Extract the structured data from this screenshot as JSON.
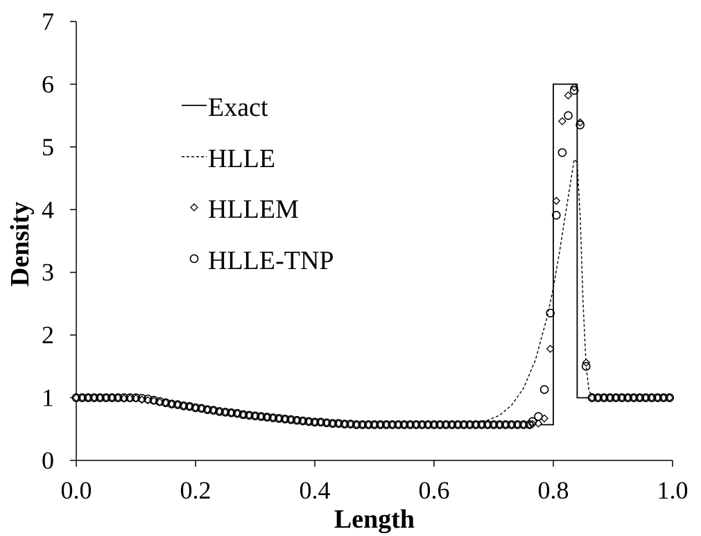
{
  "chart_data": {
    "type": "line",
    "title": "",
    "xlabel": "Length",
    "ylabel": "Density",
    "xlim": [
      0,
      1
    ],
    "ylim": [
      0,
      7
    ],
    "xticks": [
      0,
      0.2,
      0.4,
      0.6,
      0.8,
      1.0
    ],
    "xtick_labels": [
      "0.0",
      "0.2",
      "0.4",
      "0.6",
      "0.8",
      "1.0"
    ],
    "yticks": [
      0,
      1,
      2,
      3,
      4,
      5,
      6,
      7
    ],
    "ytick_labels": [
      "0",
      "1",
      "2",
      "3",
      "4",
      "5",
      "6",
      "7"
    ],
    "grid": false,
    "legend_position": "upper-left",
    "series": [
      {
        "name": "Exact",
        "style": "solid-line",
        "x": [
          0.0,
          0.1,
          0.12,
          0.14,
          0.16,
          0.18,
          0.2,
          0.22,
          0.24,
          0.26,
          0.28,
          0.3,
          0.32,
          0.34,
          0.36,
          0.38,
          0.4,
          0.42,
          0.44,
          0.46,
          0.48,
          0.5,
          0.8,
          0.8,
          0.84,
          0.84,
          1.0
        ],
        "y": [
          1.0,
          1.0,
          0.98,
          0.94,
          0.9,
          0.87,
          0.84,
          0.81,
          0.78,
          0.76,
          0.73,
          0.71,
          0.69,
          0.67,
          0.65,
          0.63,
          0.61,
          0.6,
          0.59,
          0.58,
          0.57,
          0.57,
          0.57,
          6.0,
          6.0,
          1.0,
          1.0
        ]
      },
      {
        "name": "HLLE",
        "style": "dashed-line",
        "x": [
          0.0,
          0.1,
          0.12,
          0.14,
          0.16,
          0.18,
          0.2,
          0.22,
          0.24,
          0.26,
          0.28,
          0.3,
          0.32,
          0.34,
          0.36,
          0.38,
          0.4,
          0.42,
          0.44,
          0.46,
          0.48,
          0.5,
          0.6,
          0.66,
          0.69,
          0.71,
          0.73,
          0.75,
          0.77,
          0.79,
          0.8,
          0.81,
          0.82,
          0.83,
          0.835,
          0.84,
          0.845,
          0.85,
          0.855,
          0.86,
          0.87,
          1.0
        ],
        "y": [
          1.0,
          1.0,
          0.98,
          0.94,
          0.9,
          0.87,
          0.84,
          0.81,
          0.78,
          0.76,
          0.73,
          0.71,
          0.69,
          0.67,
          0.65,
          0.63,
          0.61,
          0.6,
          0.59,
          0.58,
          0.57,
          0.57,
          0.58,
          0.6,
          0.64,
          0.72,
          0.88,
          1.15,
          1.6,
          2.3,
          2.75,
          3.3,
          3.9,
          4.5,
          4.8,
          4.75,
          3.9,
          2.5,
          1.5,
          1.1,
          1.0,
          1.0
        ]
      },
      {
        "name": "HLLEM",
        "style": "diamond-markers",
        "x": [
          0.0,
          0.01,
          0.02,
          0.03,
          0.04,
          0.05,
          0.06,
          0.07,
          0.08,
          0.09,
          0.1,
          0.11,
          0.12,
          0.13,
          0.14,
          0.15,
          0.16,
          0.17,
          0.18,
          0.19,
          0.2,
          0.21,
          0.22,
          0.23,
          0.24,
          0.25,
          0.26,
          0.27,
          0.28,
          0.29,
          0.3,
          0.31,
          0.32,
          0.33,
          0.34,
          0.35,
          0.36,
          0.37,
          0.38,
          0.39,
          0.4,
          0.41,
          0.42,
          0.43,
          0.44,
          0.45,
          0.46,
          0.47,
          0.48,
          0.49,
          0.5,
          0.51,
          0.52,
          0.53,
          0.54,
          0.55,
          0.56,
          0.57,
          0.58,
          0.59,
          0.6,
          0.61,
          0.62,
          0.63,
          0.64,
          0.65,
          0.66,
          0.67,
          0.68,
          0.69,
          0.7,
          0.71,
          0.72,
          0.73,
          0.74,
          0.75,
          0.76,
          0.765,
          0.775,
          0.785,
          0.795,
          0.805,
          0.815,
          0.825,
          0.835,
          0.845,
          0.855,
          0.865,
          0.875,
          0.885,
          0.895,
          0.905,
          0.915,
          0.925,
          0.935,
          0.945,
          0.955,
          0.965,
          0.975,
          0.985,
          0.995
        ],
        "y": [
          1.0,
          1.0,
          1.0,
          1.0,
          1.0,
          1.0,
          1.0,
          1.0,
          0.99,
          0.99,
          0.99,
          0.97,
          0.96,
          0.95,
          0.93,
          0.92,
          0.9,
          0.89,
          0.87,
          0.86,
          0.84,
          0.83,
          0.81,
          0.8,
          0.78,
          0.77,
          0.76,
          0.75,
          0.73,
          0.72,
          0.71,
          0.7,
          0.69,
          0.68,
          0.67,
          0.66,
          0.65,
          0.64,
          0.63,
          0.62,
          0.61,
          0.61,
          0.6,
          0.59,
          0.59,
          0.58,
          0.58,
          0.57,
          0.57,
          0.57,
          0.57,
          0.57,
          0.57,
          0.57,
          0.57,
          0.57,
          0.57,
          0.57,
          0.57,
          0.57,
          0.57,
          0.57,
          0.57,
          0.57,
          0.57,
          0.57,
          0.57,
          0.57,
          0.57,
          0.57,
          0.57,
          0.57,
          0.57,
          0.57,
          0.57,
          0.57,
          0.57,
          0.58,
          0.59,
          0.67,
          1.78,
          4.14,
          5.41,
          5.82,
          5.95,
          5.39,
          1.56,
          1.0,
          1.0,
          1.0,
          1.0,
          1.0,
          1.0,
          1.0,
          1.0,
          1.0,
          1.0,
          1.0,
          1.0,
          1.0,
          1.0
        ]
      },
      {
        "name": "HLLE-TNP",
        "style": "circle-markers",
        "x": [
          0.0,
          0.01,
          0.02,
          0.03,
          0.04,
          0.05,
          0.06,
          0.07,
          0.08,
          0.09,
          0.1,
          0.11,
          0.12,
          0.13,
          0.14,
          0.15,
          0.16,
          0.17,
          0.18,
          0.19,
          0.2,
          0.21,
          0.22,
          0.23,
          0.24,
          0.25,
          0.26,
          0.27,
          0.28,
          0.29,
          0.3,
          0.31,
          0.32,
          0.33,
          0.34,
          0.35,
          0.36,
          0.37,
          0.38,
          0.39,
          0.4,
          0.41,
          0.42,
          0.43,
          0.44,
          0.45,
          0.46,
          0.47,
          0.48,
          0.49,
          0.5,
          0.51,
          0.52,
          0.53,
          0.54,
          0.55,
          0.56,
          0.57,
          0.58,
          0.59,
          0.6,
          0.61,
          0.62,
          0.63,
          0.64,
          0.65,
          0.66,
          0.67,
          0.68,
          0.69,
          0.7,
          0.71,
          0.72,
          0.73,
          0.74,
          0.75,
          0.76,
          0.765,
          0.775,
          0.785,
          0.795,
          0.805,
          0.815,
          0.825,
          0.835,
          0.845,
          0.855,
          0.865,
          0.875,
          0.885,
          0.895,
          0.905,
          0.915,
          0.925,
          0.935,
          0.945,
          0.955,
          0.965,
          0.975,
          0.985,
          0.995
        ],
        "y": [
          1.0,
          1.0,
          1.0,
          1.0,
          1.0,
          1.0,
          1.0,
          1.0,
          1.0,
          1.0,
          1.0,
          0.99,
          0.98,
          0.96,
          0.94,
          0.92,
          0.9,
          0.89,
          0.87,
          0.86,
          0.84,
          0.83,
          0.81,
          0.8,
          0.78,
          0.77,
          0.76,
          0.75,
          0.73,
          0.72,
          0.71,
          0.7,
          0.69,
          0.68,
          0.67,
          0.66,
          0.65,
          0.64,
          0.63,
          0.62,
          0.61,
          0.61,
          0.6,
          0.59,
          0.59,
          0.58,
          0.58,
          0.57,
          0.57,
          0.57,
          0.57,
          0.57,
          0.57,
          0.57,
          0.57,
          0.57,
          0.57,
          0.57,
          0.57,
          0.57,
          0.57,
          0.57,
          0.57,
          0.57,
          0.57,
          0.57,
          0.57,
          0.57,
          0.57,
          0.57,
          0.57,
          0.57,
          0.57,
          0.57,
          0.57,
          0.57,
          0.57,
          0.62,
          0.7,
          1.13,
          2.35,
          3.91,
          4.91,
          5.5,
          5.9,
          5.35,
          1.5,
          1.0,
          1.0,
          1.0,
          1.0,
          1.0,
          1.0,
          1.0,
          1.0,
          1.0,
          1.0,
          1.0,
          1.0,
          1.0,
          1.0
        ]
      }
    ]
  }
}
